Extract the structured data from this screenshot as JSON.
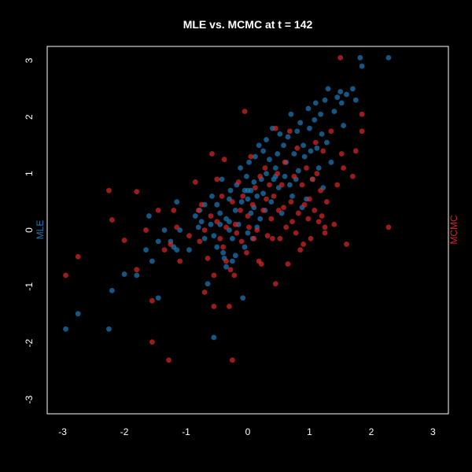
{
  "chart_data": {
    "type": "scatter",
    "title": "MLE vs. MCMC at t = 142",
    "xlim": [
      -3.25,
      3.25
    ],
    "ylim": [
      -3.25,
      3.25
    ],
    "x_ticks": [
      "-3",
      "-2",
      "-1",
      "0",
      "1",
      "2",
      "3"
    ],
    "y_ticks": [
      "-3",
      "-2",
      "-1",
      "0",
      "1",
      "2",
      "3"
    ],
    "left_axis_label": "MLE",
    "right_axis_label": "MCMC",
    "grid": false,
    "background": "#000000",
    "series": [
      {
        "name": "MLE",
        "color": "#1f77b4",
        "points": [
          [
            -2.95,
            -1.75
          ],
          [
            -2.75,
            -1.48
          ],
          [
            -2.25,
            -1.75
          ],
          [
            -2.2,
            -1.07
          ],
          [
            -2.0,
            -0.78
          ],
          [
            -1.8,
            -0.8
          ],
          [
            -1.65,
            -0.35
          ],
          [
            -1.6,
            0.25
          ],
          [
            -1.55,
            -0.55
          ],
          [
            -1.45,
            -0.2
          ],
          [
            -1.45,
            -1.2
          ],
          [
            -1.35,
            0.0
          ],
          [
            -1.25,
            -0.2
          ],
          [
            -1.2,
            -0.3
          ],
          [
            -1.15,
            -0.35
          ],
          [
            -1.15,
            0.5
          ],
          [
            -1.1,
            0.0
          ],
          [
            -0.95,
            -0.35
          ],
          [
            -0.85,
            0.25
          ],
          [
            -0.8,
            0.05
          ],
          [
            -0.78,
            0.35
          ],
          [
            -0.75,
            0.15
          ],
          [
            -0.7,
            0.45
          ],
          [
            -0.7,
            -0.15
          ],
          [
            -0.65,
            -0.95
          ],
          [
            -0.6,
            0.1
          ],
          [
            -0.58,
            0.6
          ],
          [
            -0.55,
            -0.1
          ],
          [
            -0.55,
            -1.9
          ],
          [
            -0.5,
            0.45
          ],
          [
            -0.5,
            -0.3
          ],
          [
            -0.45,
            0.1
          ],
          [
            -0.45,
            0.3
          ],
          [
            -0.42,
            0.9
          ],
          [
            -0.4,
            -0.4
          ],
          [
            -0.38,
            -0.5
          ],
          [
            -0.35,
            0.2
          ],
          [
            -0.35,
            -0.65
          ],
          [
            -0.3,
            0.15
          ],
          [
            -0.3,
            0.55
          ],
          [
            -0.28,
            0.7
          ],
          [
            -0.25,
            -0.15
          ],
          [
            -0.25,
            -0.55
          ],
          [
            -0.2,
            0.35
          ],
          [
            -0.2,
            -0.45
          ],
          [
            -0.18,
            0.8
          ],
          [
            -0.15,
            0.1
          ],
          [
            -0.12,
            1.1
          ],
          [
            -0.1,
            0.5
          ],
          [
            -0.08,
            -1.2
          ],
          [
            -0.05,
            0.7
          ],
          [
            -0.05,
            -0.3
          ],
          [
            -0.02,
            0.95
          ],
          [
            0.0,
            0.55
          ],
          [
            0.0,
            -0.05
          ],
          [
            0.02,
            1.2
          ],
          [
            0.05,
            0.3
          ],
          [
            0.05,
            0.7
          ],
          [
            0.08,
            -0.15
          ],
          [
            0.1,
            0.85
          ],
          [
            0.1,
            0.4
          ],
          [
            0.12,
            1.3
          ],
          [
            0.15,
            0.6
          ],
          [
            0.15,
            0.05
          ],
          [
            0.18,
            1.5
          ],
          [
            0.2,
            0.2
          ],
          [
            0.22,
            0.9
          ],
          [
            0.25,
            1.4
          ],
          [
            0.25,
            0.65
          ],
          [
            0.28,
            0.35
          ],
          [
            0.3,
            1.0
          ],
          [
            0.3,
            1.6
          ],
          [
            0.35,
            1.25
          ],
          [
            0.38,
            0.5
          ],
          [
            0.4,
            1.8
          ],
          [
            0.42,
            0.9
          ],
          [
            0.45,
            1.1
          ],
          [
            0.48,
            1.35
          ],
          [
            0.5,
            0.75
          ],
          [
            0.52,
            1.7
          ],
          [
            0.55,
            0.3
          ],
          [
            0.58,
            1.5
          ],
          [
            0.6,
            0.95
          ],
          [
            0.62,
            1.2
          ],
          [
            0.65,
            1.65
          ],
          [
            0.68,
            0.8
          ],
          [
            0.7,
            2.05
          ],
          [
            0.72,
            0.6
          ],
          [
            0.75,
            1.35
          ],
          [
            0.78,
            0.9
          ],
          [
            0.8,
            1.75
          ],
          [
            0.82,
            1.05
          ],
          [
            0.85,
            1.9
          ],
          [
            0.88,
            0.4
          ],
          [
            0.9,
            1.5
          ],
          [
            0.92,
            1.3
          ],
          [
            0.95,
            0.55
          ],
          [
            0.98,
            2.15
          ],
          [
            1.0,
            1.8
          ],
          [
            1.02,
            1.4
          ],
          [
            1.05,
            0.9
          ],
          [
            1.08,
            1.95
          ],
          [
            1.1,
            2.25
          ],
          [
            1.12,
            1.45
          ],
          [
            1.15,
            1.1
          ],
          [
            1.18,
            2.05
          ],
          [
            1.2,
            1.7
          ],
          [
            1.22,
            0.75
          ],
          [
            1.25,
            2.3
          ],
          [
            1.28,
            1.55
          ],
          [
            1.3,
            2.5
          ],
          [
            1.35,
            1.2
          ],
          [
            1.4,
            2.1
          ],
          [
            1.45,
            2.35
          ],
          [
            1.5,
            2.45
          ],
          [
            1.52,
            2.25
          ],
          [
            1.55,
            1.85
          ],
          [
            1.6,
            2.4
          ],
          [
            1.7,
            2.5
          ],
          [
            1.75,
            2.3
          ],
          [
            1.82,
            3.05
          ],
          [
            1.85,
            2.9
          ],
          [
            2.28,
            3.05
          ],
          [
            0.0,
            0.7
          ],
          [
            -0.3,
            0.0
          ],
          [
            0.45,
            0.95
          ]
        ]
      },
      {
        "name": "MCMC",
        "color": "#d62728",
        "points": [
          [
            -2.95,
            -0.8
          ],
          [
            -2.75,
            -0.47
          ],
          [
            -2.25,
            0.7
          ],
          [
            -2.2,
            0.18
          ],
          [
            -2.0,
            -0.18
          ],
          [
            -1.8,
            0.68
          ],
          [
            -1.8,
            -0.7
          ],
          [
            -1.65,
            -0.0
          ],
          [
            -1.55,
            -1.25
          ],
          [
            -1.55,
            -1.98
          ],
          [
            -1.45,
            0.35
          ],
          [
            -1.35,
            -0.35
          ],
          [
            -1.28,
            -2.3
          ],
          [
            -1.25,
            -0.25
          ],
          [
            -1.2,
            0.35
          ],
          [
            -1.15,
            0.05
          ],
          [
            -1.1,
            -0.55
          ],
          [
            -0.95,
            -0.1
          ],
          [
            -0.85,
            0.85
          ],
          [
            -0.8,
            0.35
          ],
          [
            -0.78,
            -0.2
          ],
          [
            -0.75,
            0.45
          ],
          [
            -0.7,
            -1.1
          ],
          [
            -0.7,
            0.0
          ],
          [
            -0.65,
            -0.5
          ],
          [
            -0.6,
            0.25
          ],
          [
            -0.58,
            1.35
          ],
          [
            -0.55,
            -0.8
          ],
          [
            -0.55,
            -1.35
          ],
          [
            -0.5,
            0.15
          ],
          [
            -0.5,
            0.9
          ],
          [
            -0.45,
            -0.15
          ],
          [
            -0.42,
            0.6
          ],
          [
            -0.4,
            -0.3
          ],
          [
            -0.38,
            1.25
          ],
          [
            -0.35,
            -0.55
          ],
          [
            -0.35,
            0.05
          ],
          [
            -0.3,
            -1.35
          ],
          [
            -0.28,
            -0.7
          ],
          [
            -0.25,
            0.5
          ],
          [
            -0.25,
            -2.3
          ],
          [
            -0.22,
            -0.8
          ],
          [
            -0.2,
            0.1
          ],
          [
            -0.18,
            -0.05
          ],
          [
            -0.15,
            0.85
          ],
          [
            -0.12,
            0.35
          ],
          [
            -0.1,
            -0.2
          ],
          [
            -0.08,
            0.6
          ],
          [
            -0.05,
            2.1
          ],
          [
            -0.02,
            -0.4
          ],
          [
            0.0,
            0.25
          ],
          [
            0.02,
            0.05
          ],
          [
            0.05,
            1.3
          ],
          [
            0.08,
            0.45
          ],
          [
            0.1,
            -0.15
          ],
          [
            0.12,
            0.75
          ],
          [
            0.15,
            0.0
          ],
          [
            0.18,
            -0.55
          ],
          [
            0.2,
            0.95
          ],
          [
            0.22,
            -0.6
          ],
          [
            0.25,
            0.35
          ],
          [
            0.28,
            1.1
          ],
          [
            0.3,
            0.55
          ],
          [
            0.32,
            -0.1
          ],
          [
            0.35,
            0.8
          ],
          [
            0.38,
            0.2
          ],
          [
            0.4,
            -0.15
          ],
          [
            0.42,
            0.6
          ],
          [
            0.45,
            1.8
          ],
          [
            0.45,
            -0.95
          ],
          [
            0.48,
            1.0
          ],
          [
            0.5,
            0.35
          ],
          [
            0.52,
            -0.15
          ],
          [
            0.55,
            0.8
          ],
          [
            0.58,
            0.4
          ],
          [
            0.6,
            1.2
          ],
          [
            0.62,
            0.05
          ],
          [
            0.65,
            -0.6
          ],
          [
            0.68,
            1.75
          ],
          [
            0.7,
            0.5
          ],
          [
            0.72,
            0.15
          ],
          [
            0.75,
            0.95
          ],
          [
            0.78,
            -0.05
          ],
          [
            0.8,
            1.45
          ],
          [
            0.82,
            0.3
          ],
          [
            0.85,
            -0.35
          ],
          [
            0.88,
            0.8
          ],
          [
            0.9,
            -0.25
          ],
          [
            0.92,
            0.45
          ],
          [
            0.95,
            1.1
          ],
          [
            0.98,
            0.2
          ],
          [
            1.0,
            0.55
          ],
          [
            1.02,
            -0.15
          ],
          [
            1.05,
            0.9
          ],
          [
            1.08,
            0.35
          ],
          [
            1.1,
            1.55
          ],
          [
            1.12,
            1.0
          ],
          [
            1.15,
            0.15
          ],
          [
            1.18,
            0.7
          ],
          [
            1.2,
            0.25
          ],
          [
            1.22,
            1.4
          ],
          [
            1.25,
            -0.05
          ],
          [
            1.28,
            0.5
          ],
          [
            1.35,
            1.75
          ],
          [
            1.4,
            0.1
          ],
          [
            1.45,
            0.8
          ],
          [
            1.5,
            3.05
          ],
          [
            1.52,
            1.35
          ],
          [
            1.55,
            1.1
          ],
          [
            1.6,
            -0.25
          ],
          [
            1.7,
            0.95
          ],
          [
            1.75,
            1.4
          ],
          [
            1.85,
            2.05
          ],
          [
            1.85,
            1.75
          ],
          [
            2.28,
            0.05
          ],
          [
            1.25,
            0.05
          ]
        ]
      }
    ]
  }
}
